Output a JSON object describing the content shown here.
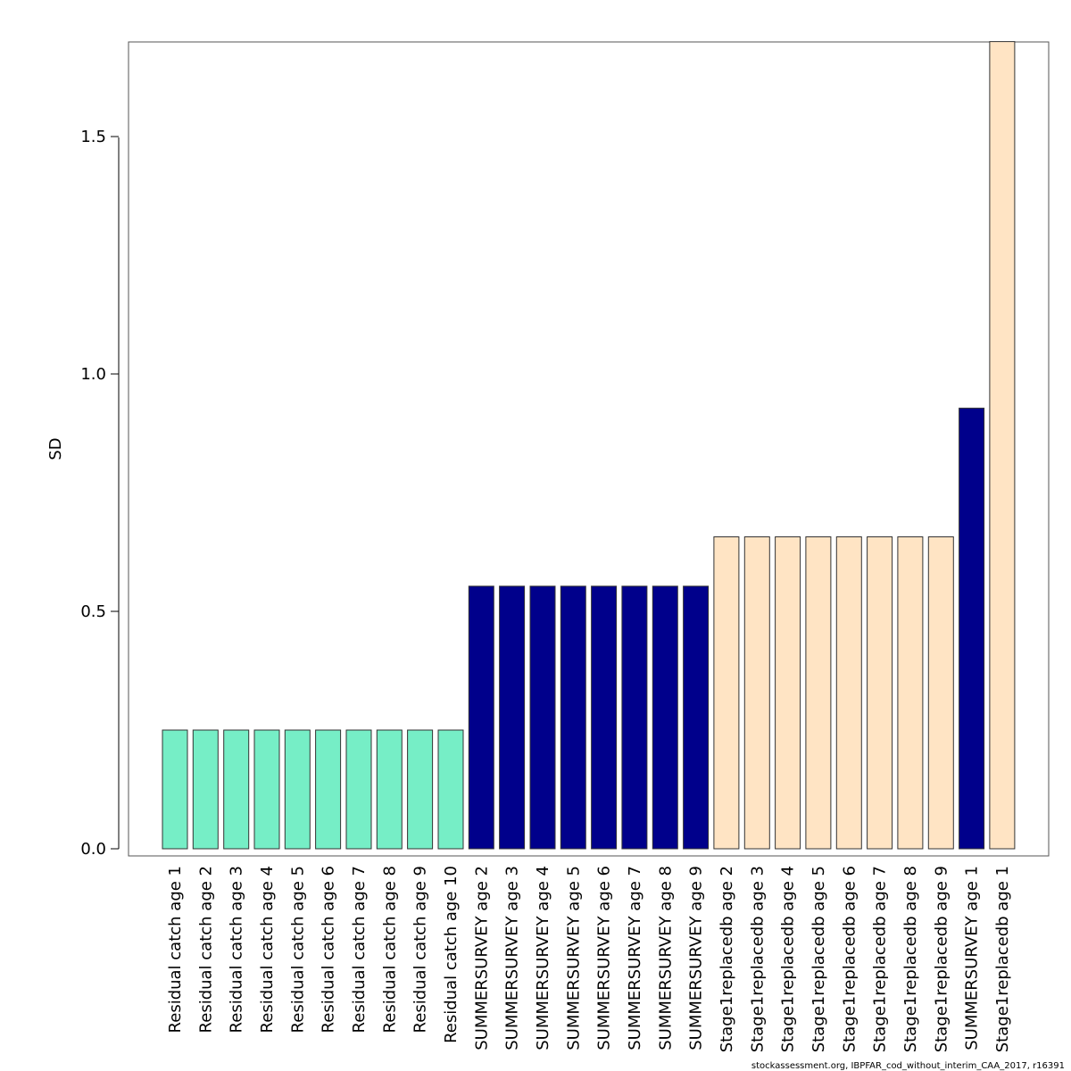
{
  "chart_data": {
    "type": "bar",
    "ylabel": "SD",
    "ylim": [
      0,
      1.7
    ],
    "yticks": [
      "0.0",
      "0.5",
      "1.0",
      "1.5"
    ],
    "ytick_values": [
      0,
      0.5,
      1.0,
      1.5
    ],
    "grid": false,
    "categories": [
      "Residual catch age 1",
      "Residual catch age 2",
      "Residual catch age 3",
      "Residual catch age 4",
      "Residual catch age 5",
      "Residual catch age 6",
      "Residual catch age 7",
      "Residual catch age 8",
      "Residual catch age 9",
      "Residual catch age 10",
      "SUMMERSURVEY age 2",
      "SUMMERSURVEY age 3",
      "SUMMERSURVEY age 4",
      "SUMMERSURVEY age 5",
      "SUMMERSURVEY age 6",
      "SUMMERSURVEY age 7",
      "SUMMERSURVEY age 8",
      "SUMMERSURVEY age 9",
      "Stage1replacedb age 2",
      "Stage1replacedb age 3",
      "Stage1replacedb age 4",
      "Stage1replacedb age 5",
      "Stage1replacedb age 6",
      "Stage1replacedb age 7",
      "Stage1replacedb age 8",
      "Stage1replacedb age 9",
      "SUMMERSURVEY age 1",
      "Stage1replacedb age 1"
    ],
    "values": [
      0.25,
      0.25,
      0.25,
      0.25,
      0.25,
      0.25,
      0.25,
      0.25,
      0.25,
      0.25,
      0.553,
      0.553,
      0.553,
      0.553,
      0.553,
      0.553,
      0.553,
      0.553,
      0.657,
      0.657,
      0.657,
      0.657,
      0.657,
      0.657,
      0.657,
      0.657,
      0.928,
      1.7
    ],
    "colors": [
      "#76eec6",
      "#76eec6",
      "#76eec6",
      "#76eec6",
      "#76eec6",
      "#76eec6",
      "#76eec6",
      "#76eec6",
      "#76eec6",
      "#76eec6",
      "#00008b",
      "#00008b",
      "#00008b",
      "#00008b",
      "#00008b",
      "#00008b",
      "#00008b",
      "#00008b",
      "#ffe4c4",
      "#ffe4c4",
      "#ffe4c4",
      "#ffe4c4",
      "#ffe4c4",
      "#ffe4c4",
      "#ffe4c4",
      "#ffe4c4",
      "#00008b",
      "#ffe4c4"
    ]
  },
  "footnote": "stockassessment.org, IBPFAR_cod_without_interim_CAA_2017, r16391"
}
